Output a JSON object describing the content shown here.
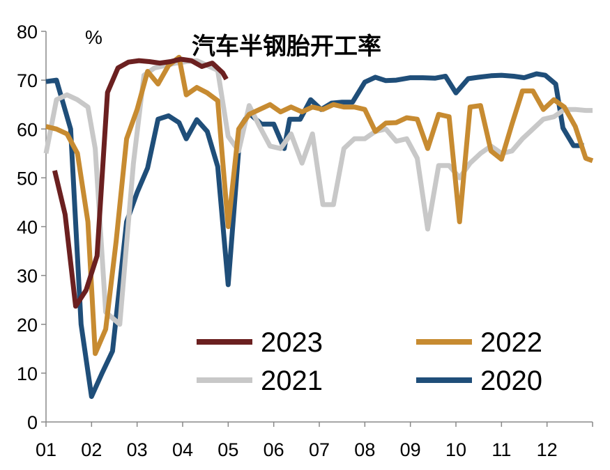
{
  "chart_data": {
    "type": "line",
    "title": "汽车半钢胎开工率",
    "ylabel": "%",
    "xlabel": "",
    "ylim": [
      0,
      80
    ],
    "yticks": [
      0,
      10,
      20,
      30,
      40,
      50,
      60,
      70,
      80
    ],
    "x_ticks": [
      "01",
      "02",
      "03",
      "04",
      "05",
      "06",
      "07",
      "08",
      "09",
      "10",
      "11",
      "12"
    ],
    "x_range": [
      1,
      13
    ],
    "grid": false,
    "legend": "bottom-right",
    "series": [
      {
        "name": "2020",
        "color": "#1F4E79",
        "x": [
          1.0,
          1.23,
          1.54,
          1.77,
          2.0,
          2.23,
          2.46,
          2.77,
          3.0,
          3.23,
          3.46,
          3.69,
          3.92,
          4.08,
          4.31,
          4.54,
          4.77,
          5.0,
          5.27,
          5.46,
          5.73,
          6.0,
          6.23,
          6.35,
          6.58,
          6.81,
          7.04,
          7.27,
          7.5,
          7.73,
          8.0,
          8.23,
          8.46,
          8.69,
          9.0,
          9.27,
          9.54,
          9.77,
          10.0,
          10.27,
          10.5,
          10.77,
          11.0,
          11.27,
          11.5,
          11.77,
          11.96,
          12.19,
          12.35,
          12.58,
          12.81
        ],
        "y": [
          69.7,
          70.0,
          60.0,
          20.0,
          5.2,
          10.0,
          14.5,
          41.0,
          47.0,
          52.0,
          62.0,
          62.7,
          61.3,
          58.0,
          61.9,
          59.5,
          52.3,
          28.1,
          60.5,
          63.2,
          61.0,
          61.0,
          56.0,
          62.0,
          62.0,
          66.0,
          64.0,
          65.3,
          65.5,
          65.5,
          69.6,
          70.6,
          69.9,
          70.0,
          70.5,
          70.5,
          70.4,
          70.8,
          67.4,
          70.3,
          70.6,
          70.9,
          71.0,
          70.8,
          70.5,
          71.3,
          71.0,
          69.2,
          60.2,
          56.6,
          56.6
        ]
      },
      {
        "name": "2021",
        "color": "#C8C8C8",
        "x": [
          1.0,
          1.23,
          1.46,
          1.69,
          1.92,
          2.08,
          2.31,
          2.62,
          2.92,
          3.15,
          3.38,
          3.62,
          3.85,
          4.08,
          4.31,
          4.54,
          4.77,
          5.0,
          5.23,
          5.46,
          5.69,
          5.92,
          6.15,
          6.38,
          6.62,
          6.85,
          7.08,
          7.31,
          7.54,
          7.77,
          8.0,
          8.23,
          8.46,
          8.69,
          8.92,
          9.15,
          9.38,
          9.62,
          9.85,
          10.08,
          10.31,
          10.54,
          10.77,
          11.0,
          11.23,
          11.46,
          11.69,
          11.92,
          12.15,
          12.38,
          12.62,
          12.85,
          13.0
        ],
        "y": [
          55.0,
          66.0,
          67.0,
          66.0,
          64.5,
          56.0,
          22.5,
          20.0,
          53.0,
          71.0,
          72.5,
          73.0,
          73.5,
          73.8,
          74.0,
          73.0,
          72.0,
          58.5,
          55.5,
          64.8,
          60.5,
          56.5,
          56.0,
          59.0,
          53.0,
          59.0,
          44.5,
          44.5,
          56.0,
          58.0,
          58.0,
          59.5,
          60.0,
          57.5,
          58.0,
          54.0,
          39.5,
          52.5,
          52.5,
          50.0,
          53.0,
          55.0,
          56.5,
          55.0,
          55.5,
          58.0,
          60.0,
          62.0,
          62.5,
          64.0,
          64.0,
          63.8,
          63.8
        ]
      },
      {
        "name": "2022",
        "color": "#C78B31",
        "x": [
          1.0,
          1.23,
          1.46,
          1.69,
          1.92,
          2.08,
          2.31,
          2.54,
          2.77,
          3.0,
          3.23,
          3.46,
          3.69,
          3.92,
          4.08,
          4.31,
          4.54,
          4.77,
          5.0,
          5.23,
          5.46,
          5.69,
          5.92,
          6.15,
          6.38,
          6.62,
          6.85,
          7.08,
          7.31,
          7.54,
          7.77,
          8.0,
          8.23,
          8.46,
          8.69,
          8.92,
          9.15,
          9.38,
          9.62,
          9.85,
          10.08,
          10.31,
          10.54,
          10.77,
          11.0,
          11.23,
          11.46,
          11.69,
          11.92,
          12.15,
          12.38,
          12.62,
          12.85,
          13.0
        ],
        "y": [
          60.5,
          60.0,
          59.0,
          55.0,
          41.0,
          14.0,
          19.0,
          37.0,
          58.0,
          64.0,
          71.8,
          69.2,
          73.0,
          74.7,
          67.0,
          68.5,
          67.4,
          65.8,
          40.0,
          60.0,
          63.0,
          64.0,
          65.0,
          63.5,
          64.5,
          63.5,
          64.5,
          64.0,
          65.0,
          64.5,
          64.5,
          64.0,
          59.5,
          61.2,
          61.3,
          62.3,
          62.0,
          56.0,
          63.0,
          62.5,
          41.0,
          64.5,
          64.8,
          55.5,
          53.8,
          61.0,
          67.8,
          67.8,
          64.0,
          66.0,
          64.5,
          60.5,
          54.0,
          53.5
        ]
      },
      {
        "name": "2023",
        "color": "#6B2020",
        "x": [
          1.19,
          1.42,
          1.65,
          1.88,
          2.12,
          2.35,
          2.58,
          2.81,
          3.04,
          3.27,
          3.5,
          3.73,
          3.96,
          4.19,
          4.42,
          4.65,
          4.88,
          4.96
        ],
        "y": [
          51.5,
          42.5,
          23.7,
          27.0,
          34.0,
          67.5,
          72.5,
          73.7,
          74.0,
          73.8,
          73.5,
          73.8,
          74.3,
          74.0,
          72.8,
          73.5,
          71.5,
          70.2
        ]
      }
    ]
  }
}
